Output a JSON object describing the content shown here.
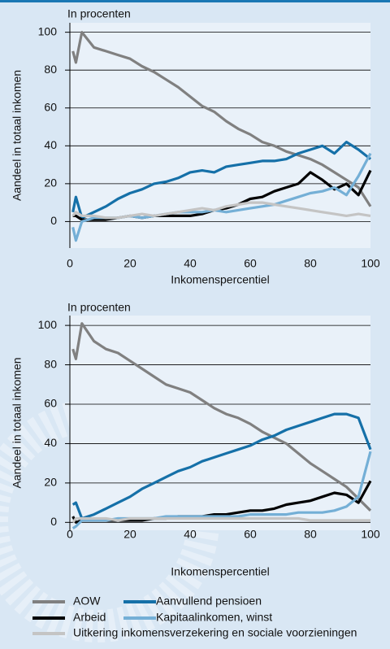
{
  "chart_data": [
    {
      "type": "line",
      "subtitle": "In procenten",
      "ylabel": "Aandeel in totaal inkomen",
      "xlabel": "Inkomenspercentiel",
      "x": [
        1,
        2,
        4,
        8,
        12,
        16,
        20,
        24,
        28,
        32,
        36,
        40,
        44,
        48,
        52,
        56,
        60,
        64,
        68,
        72,
        76,
        80,
        84,
        88,
        92,
        96,
        100
      ],
      "xlim": [
        0,
        100
      ],
      "xticks": [
        0,
        20,
        40,
        60,
        80,
        100
      ],
      "ylim": [
        -14,
        105
      ],
      "yticks": [
        0,
        20,
        40,
        60,
        80,
        100
      ],
      "grid": true,
      "series": [
        {
          "name": "AOW",
          "color": "#808080",
          "values": [
            90,
            84,
            100,
            92,
            90,
            88,
            86,
            82,
            79,
            75,
            71,
            66,
            61,
            58,
            53,
            49,
            46,
            42,
            40,
            37,
            35,
            33,
            30,
            26,
            22,
            18,
            8
          ]
        },
        {
          "name": "Aanvullend pensioen",
          "color": "#1570a8",
          "values": [
            5,
            13,
            2,
            5,
            8,
            12,
            15,
            17,
            20,
            21,
            23,
            26,
            27,
            26,
            29,
            30,
            31,
            32,
            32,
            33,
            36,
            38,
            40,
            36,
            42,
            38,
            33
          ]
        },
        {
          "name": "Arbeid",
          "color": "#000000",
          "values": [
            3,
            3,
            1,
            1,
            1,
            2,
            3,
            2,
            3,
            3,
            3,
            3,
            4,
            6,
            7,
            9,
            12,
            13,
            16,
            18,
            20,
            26,
            22,
            17,
            20,
            14,
            27
          ]
        },
        {
          "name": "Kapitaalinkomen, winst",
          "color": "#74afd6",
          "values": [
            -3,
            -10,
            0,
            2,
            2,
            2,
            3,
            2,
            3,
            4,
            5,
            5,
            5,
            6,
            5,
            6,
            7,
            8,
            9,
            11,
            13,
            15,
            16,
            18,
            14,
            24,
            36
          ]
        },
        {
          "name": "Uitkering inkomensverzekering en sociale voorzieningen",
          "color": "#c4c4c4",
          "values": [
            3,
            5,
            3,
            3,
            2,
            2,
            3,
            4,
            3,
            4,
            5,
            6,
            7,
            6,
            8,
            9,
            10,
            10,
            9,
            8,
            7,
            6,
            5,
            4,
            3,
            4,
            3
          ]
        }
      ]
    },
    {
      "type": "line",
      "subtitle": "In procenten",
      "ylabel": "Aandeel in totaal inkomen",
      "xlabel": "Inkomenspercentiel",
      "x": [
        1,
        2,
        4,
        8,
        12,
        16,
        20,
        24,
        28,
        32,
        36,
        40,
        44,
        48,
        52,
        56,
        60,
        64,
        68,
        72,
        76,
        80,
        84,
        88,
        92,
        96,
        100
      ],
      "xlim": [
        0,
        100
      ],
      "xticks": [
        0,
        20,
        40,
        60,
        80,
        100
      ],
      "ylim": [
        -4,
        105
      ],
      "yticks": [
        0,
        20,
        40,
        60,
        80,
        100
      ],
      "grid": true,
      "series": [
        {
          "color": "#808080",
          "values": [
            88,
            83,
            101,
            92,
            88,
            86,
            82,
            78,
            74,
            70,
            68,
            66,
            62,
            58,
            55,
            53,
            50,
            46,
            43,
            40,
            35,
            30,
            26,
            22,
            18,
            12,
            6
          ]
        },
        {
          "color": "#1570a8",
          "values": [
            9,
            10,
            2,
            4,
            7,
            10,
            13,
            17,
            20,
            23,
            26,
            28,
            31,
            33,
            35,
            37,
            39,
            42,
            44,
            47,
            49,
            51,
            53,
            55,
            55,
            53,
            37
          ]
        },
        {
          "color": "#000000",
          "values": [
            3,
            0,
            1,
            1,
            1,
            1,
            1,
            1,
            2,
            2,
            3,
            3,
            3,
            4,
            4,
            5,
            6,
            6,
            7,
            9,
            10,
            11,
            13,
            15,
            14,
            10,
            21
          ]
        },
        {
          "color": "#74afd6",
          "values": [
            -3,
            -2,
            1,
            1,
            1,
            2,
            2,
            2,
            2,
            3,
            3,
            3,
            3,
            3,
            3,
            3,
            4,
            4,
            4,
            4,
            5,
            5,
            5,
            6,
            8,
            13,
            36
          ]
        },
        {
          "color": "#c4c4c4",
          "values": [
            0,
            2,
            2,
            2,
            2,
            1,
            2,
            2,
            2,
            2,
            2,
            2,
            2,
            2,
            2,
            2,
            2,
            2,
            2,
            2,
            2,
            1,
            1,
            1,
            1,
            1,
            1
          ]
        }
      ]
    }
  ]
}
